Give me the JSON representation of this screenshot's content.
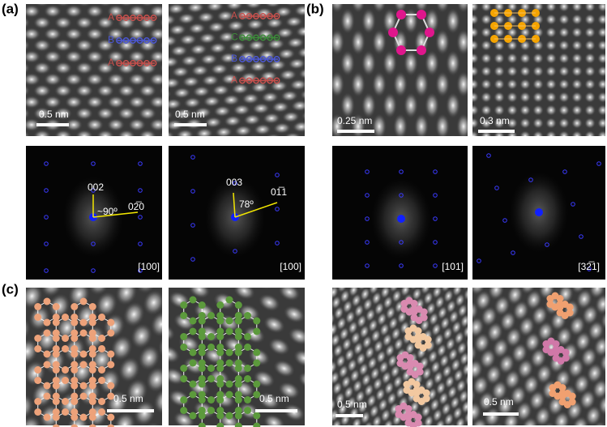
{
  "panel_labels": {
    "a": "(a)",
    "b": "(b)",
    "c": "(c)"
  },
  "panel_a": {
    "image_1": {
      "layers": [
        "A",
        "B",
        "A"
      ],
      "scale_bar": "0.5 nm"
    },
    "image_2": {
      "layers": [
        "A",
        "C",
        "B",
        "A"
      ],
      "scale_bar": "0.5 nm"
    },
    "fft_1": {
      "spots": [
        "002",
        "02̅0"
      ],
      "angle": "~90º",
      "zone_axis": "[100]"
    },
    "fft_2": {
      "spots": [
        "003",
        "01̅1"
      ],
      "angle": "78º",
      "zone_axis": "[100]"
    }
  },
  "panel_b": {
    "image_1": {
      "scale_bar": "0.25 nm"
    },
    "image_2": {
      "scale_bar": "0.3 nm"
    },
    "fft_1": {
      "zone_axis": "[101]"
    },
    "fft_2": {
      "zone_axis": "[32̅1]"
    }
  },
  "panel_c": {
    "image_1": {
      "scale_bar": "0.5 nm"
    },
    "image_2": {
      "scale_bar": "0.5 nm"
    },
    "image_3": {
      "scale_bar": "0.5 nm"
    },
    "image_4": {
      "scale_bar": "0.5 nm"
    }
  }
}
